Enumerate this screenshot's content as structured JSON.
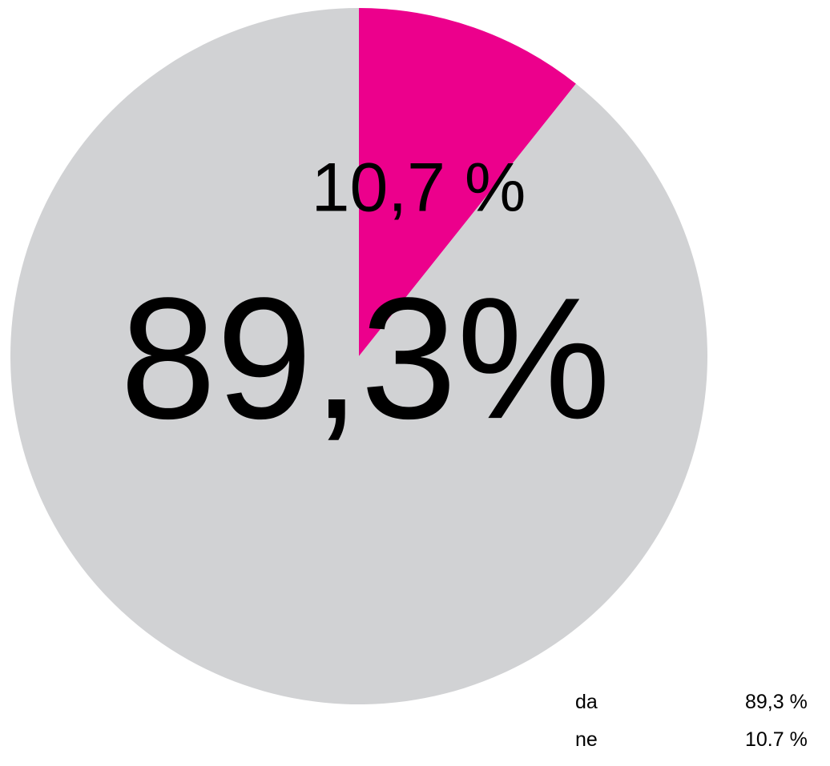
{
  "chart_data": {
    "type": "pie",
    "start_angle": "12 o'clock",
    "direction": "clockwise",
    "slices": [
      {
        "label": "ne",
        "value": 10.7,
        "display_label": "10,7 %",
        "legend_value": "10.7 %",
        "color": "#EC008C"
      },
      {
        "label": "da",
        "value": 89.3,
        "display_label": "89,3%",
        "legend_value": "89,3 %",
        "color": "#D1D2D4"
      }
    ],
    "legend": {
      "placement": "bottom-right",
      "entries": [
        {
          "label": "da",
          "value": "89,3 %"
        },
        {
          "label": "ne",
          "value": "10.7 %"
        }
      ]
    }
  },
  "colors": {
    "background": "#FFFFFF",
    "text": "#000000"
  }
}
